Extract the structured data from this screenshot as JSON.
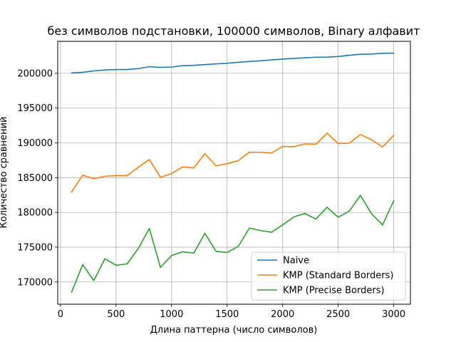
{
  "chart_data": {
    "type": "line",
    "title": "без символов подстановки, 100000 символов, Binary алфавит",
    "xlabel": "Длина паттерна (число символов)",
    "ylabel": "Количество сравнений",
    "xlim": [
      -25,
      3150
    ],
    "ylim": [
      166800,
      204600
    ],
    "xticks": [
      0,
      500,
      1000,
      1500,
      2000,
      2500,
      3000
    ],
    "yticks": [
      170000,
      175000,
      180000,
      185000,
      190000,
      195000,
      200000
    ],
    "grid": true,
    "legend_position": "lower-right",
    "x": [
      100,
      200,
      300,
      400,
      500,
      600,
      700,
      800,
      900,
      1000,
      1100,
      1200,
      1300,
      1400,
      1500,
      1600,
      1700,
      1800,
      1900,
      2000,
      2100,
      2200,
      2300,
      2400,
      2500,
      2600,
      2700,
      2800,
      2900,
      3000
    ],
    "series": [
      {
        "name": "Naive",
        "color": "#1f77b4",
        "values": [
          200050,
          200150,
          200350,
          200480,
          200550,
          200550,
          200680,
          200950,
          200850,
          200900,
          201100,
          201150,
          201250,
          201350,
          201450,
          201580,
          201700,
          201800,
          201930,
          202050,
          202150,
          202230,
          202320,
          202330,
          202420,
          202600,
          202740,
          202780,
          202880,
          202900
        ]
      },
      {
        "name": "KMP (Standard Borders)",
        "color": "#ff7f0e",
        "values": [
          182950,
          185350,
          184850,
          185200,
          185300,
          185300,
          186500,
          187600,
          185050,
          185600,
          186550,
          186400,
          188450,
          186700,
          187000,
          187450,
          188650,
          188650,
          188550,
          189500,
          189450,
          189850,
          189800,
          191400,
          189900,
          189950,
          191200,
          190450,
          189400,
          191100
        ]
      },
      {
        "name": "KMP (Precise Borders)",
        "color": "#2ca02c",
        "values": [
          168550,
          172500,
          170200,
          173350,
          172400,
          172600,
          174800,
          177700,
          172100,
          173800,
          174350,
          174150,
          177000,
          174400,
          174250,
          175100,
          177750,
          177400,
          177150,
          178200,
          179350,
          179850,
          179050,
          180750,
          179300,
          180200,
          182450,
          179800,
          178200,
          181700
        ]
      }
    ]
  }
}
